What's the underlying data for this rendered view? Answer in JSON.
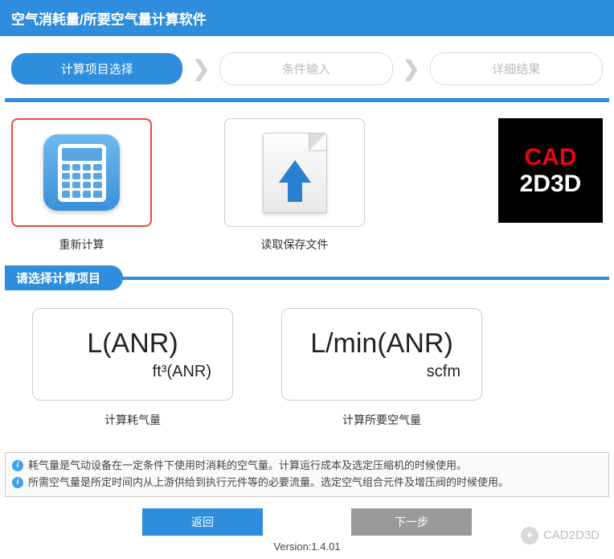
{
  "app": {
    "title": "空气消耗量/所要空气量计算软件"
  },
  "steps": {
    "s1": "计算项目选择",
    "s2": "条件输入",
    "s3": "详细结果"
  },
  "cards": {
    "recalc_label": "重新计算",
    "load_label": "读取保存文件"
  },
  "logo": {
    "line1": "CAD",
    "line2": "2D3D"
  },
  "section": {
    "title": "请选择计算项目"
  },
  "calc": {
    "opt1_main": "L(ANR)",
    "opt1_sub": "ft³(ANR)",
    "opt1_label": "计算耗气量",
    "opt2_main": "L/min(ANR)",
    "opt2_sub": "scfm",
    "opt2_label": "计算所要空气量"
  },
  "info": {
    "line1": "耗气量是气动设备在一定条件下使用时消耗的空气量。计算运行成本及选定压缩机的时候使用。",
    "line2": "所需空气量是所定时间内从上游供给到执行元件等的必要流量。选定空气组合元件及增压阀的时候使用。"
  },
  "buttons": {
    "back": "返回",
    "next": "下一步"
  },
  "version": "Version:1.4.01",
  "watermark": "CAD2D3D",
  "colors": {
    "primary": "#2e8ddd",
    "accent_red": "#e74c3c"
  }
}
